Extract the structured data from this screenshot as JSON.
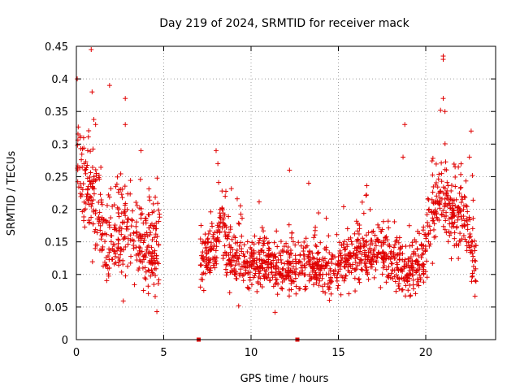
{
  "chart_data": {
    "type": "scatter",
    "title": "Day 219 of 2024, SRMTID for receiver mack",
    "xlabel": "GPS time / hours",
    "ylabel": "SRMTID / TECUs",
    "xlim": [
      0,
      24
    ],
    "ylim": [
      0,
      0.45
    ],
    "xticks": [
      0,
      5,
      10,
      15,
      20
    ],
    "yticks": [
      0,
      0.05,
      0.1,
      0.15,
      0.2,
      0.25,
      0.3,
      0.35,
      0.4,
      0.45
    ],
    "xtick_labels": [
      "0",
      "5",
      "10",
      "15",
      "20"
    ],
    "ytick_labels": [
      "0",
      "0.05",
      "0.1",
      "0.15",
      "0.2",
      "0.25",
      "0.3",
      "0.35",
      "0.4",
      "0.45"
    ],
    "grid": true,
    "marker": "+",
    "color": "#e00000",
    "series": [
      {
        "name": "SRMTID",
        "segments": [
          {
            "x_range": [
              0.0,
              4.8
            ],
            "profile": [
              [
                0.0,
                0.27
              ],
              [
                0.3,
                0.25
              ],
              [
                0.7,
                0.24
              ],
              [
                1.0,
                0.21
              ],
              [
                1.5,
                0.17
              ],
              [
                2.0,
                0.15
              ],
              [
                2.5,
                0.17
              ],
              [
                3.0,
                0.16
              ],
              [
                3.5,
                0.15
              ],
              [
                4.0,
                0.14
              ],
              [
                4.5,
                0.13
              ],
              [
                4.8,
                0.15
              ]
            ],
            "spread": 0.055
          },
          {
            "x_range": [
              7.1,
              10.0
            ],
            "profile": [
              [
                7.1,
                0.13
              ],
              [
                7.5,
                0.12
              ],
              [
                8.0,
                0.15
              ],
              [
                8.3,
                0.19
              ],
              [
                8.6,
                0.14
              ],
              [
                9.0,
                0.12
              ],
              [
                9.5,
                0.12
              ],
              [
                10.0,
                0.12
              ]
            ],
            "spread": 0.04
          },
          {
            "x_range": [
              10.0,
              15.0
            ],
            "profile": [
              [
                10.0,
                0.12
              ],
              [
                11.0,
                0.115
              ],
              [
                12.0,
                0.11
              ],
              [
                13.0,
                0.12
              ],
              [
                14.0,
                0.11
              ],
              [
                14.5,
                0.1
              ],
              [
                15.0,
                0.11
              ]
            ],
            "spread": 0.035
          },
          {
            "x_range": [
              15.0,
              20.0
            ],
            "profile": [
              [
                15.0,
                0.12
              ],
              [
                16.0,
                0.13
              ],
              [
                17.0,
                0.13
              ],
              [
                17.5,
                0.14
              ],
              [
                18.0,
                0.12
              ],
              [
                18.5,
                0.11
              ],
              [
                19.0,
                0.1
              ],
              [
                19.5,
                0.11
              ],
              [
                20.0,
                0.13
              ]
            ],
            "spread": 0.035
          },
          {
            "x_range": [
              20.0,
              22.9
            ],
            "profile": [
              [
                20.0,
                0.15
              ],
              [
                20.5,
                0.2
              ],
              [
                20.8,
                0.22
              ],
              [
                21.2,
                0.2
              ],
              [
                21.5,
                0.18
              ],
              [
                22.0,
                0.19
              ],
              [
                22.3,
                0.18
              ],
              [
                22.6,
                0.13
              ],
              [
                22.9,
                0.11
              ]
            ],
            "spread": 0.045
          }
        ],
        "notable_points": [
          {
            "x": 0.0,
            "y": 0.44
          },
          {
            "x": 0.0,
            "y": 0.42
          },
          {
            "x": 0.05,
            "y": 0.4
          },
          {
            "x": 0.85,
            "y": 0.445
          },
          {
            "x": 0.9,
            "y": 0.38
          },
          {
            "x": 1.1,
            "y": 0.33
          },
          {
            "x": 1.9,
            "y": 0.39
          },
          {
            "x": 2.8,
            "y": 0.37
          },
          {
            "x": 2.8,
            "y": 0.33
          },
          {
            "x": 3.7,
            "y": 0.29
          },
          {
            "x": 8.0,
            "y": 0.29
          },
          {
            "x": 8.1,
            "y": 0.27
          },
          {
            "x": 12.2,
            "y": 0.26
          },
          {
            "x": 13.3,
            "y": 0.24
          },
          {
            "x": 18.8,
            "y": 0.33
          },
          {
            "x": 18.7,
            "y": 0.28
          },
          {
            "x": 21.0,
            "y": 0.435
          },
          {
            "x": 21.0,
            "y": 0.43
          },
          {
            "x": 21.0,
            "y": 0.37
          },
          {
            "x": 21.1,
            "y": 0.35
          },
          {
            "x": 22.6,
            "y": 0.32
          },
          {
            "x": 22.5,
            "y": 0.28
          }
        ]
      }
    ],
    "data_gaps": [
      {
        "x_range": [
          4.8,
          7.1
        ],
        "marker_x": 7.0
      },
      {
        "x_range": [
          12.6,
          12.7
        ],
        "marker_x": 12.65
      }
    ]
  }
}
